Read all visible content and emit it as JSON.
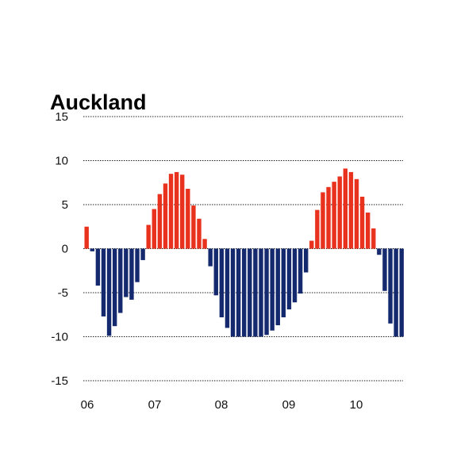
{
  "chart_data": {
    "type": "bar",
    "title": "Auckland",
    "ylim": [
      -15,
      15
    ],
    "yticks": [
      15,
      10,
      5,
      0,
      -5,
      -10,
      -15
    ],
    "ytick_labels": [
      "15",
      "10",
      "5",
      "0",
      "-5",
      "-10",
      "-15"
    ],
    "xticks": [
      "06",
      "07",
      "08",
      "09",
      "10"
    ],
    "grid": "horizontal dotted",
    "colors": {
      "positive": "#e8321e",
      "negative": "#15296e"
    },
    "values": [
      2.5,
      -0.3,
      -4.2,
      -7.7,
      -9.9,
      -8.8,
      -7.3,
      -5.5,
      -5.8,
      -3.8,
      -1.3,
      2.7,
      4.5,
      6.2,
      7.4,
      8.5,
      8.7,
      8.4,
      6.8,
      4.9,
      3.4,
      1.1,
      -2.0,
      -5.3,
      -7.8,
      -9.0,
      -10.0,
      -10.0,
      -10.0,
      -10.0,
      -10.0,
      -10.0,
      -9.8,
      -9.3,
      -8.7,
      -7.8,
      -6.9,
      -6.1,
      -5.1,
      -2.7,
      0.9,
      4.4,
      6.4,
      7.0,
      7.6,
      8.2,
      9.1,
      8.7,
      7.9,
      5.9,
      4.1,
      2.3,
      -0.7,
      -4.8,
      -8.5,
      -10.0,
      -10.0
    ]
  }
}
